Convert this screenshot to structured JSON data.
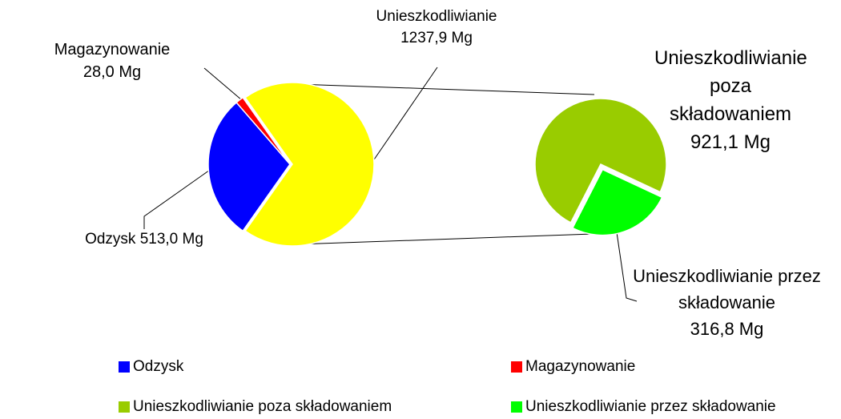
{
  "chart_data": [
    {
      "type": "pie",
      "categories": [
        "Odzysk",
        "Magazynowanie",
        "Unieszkodliwianie"
      ],
      "values": [
        513.0,
        28.0,
        1237.9
      ],
      "value_labels": [
        "513,0 Mg",
        "28,0 Mg",
        "1237,9 Mg"
      ],
      "colors": [
        "#0000ff",
        "#ff0000",
        "#ffff00"
      ],
      "legend": [
        true,
        true,
        false
      ]
    },
    {
      "type": "pie",
      "categories": [
        "Unieszkodliwianie poza składowaniem",
        "Unieszkodliwianie przez składowanie"
      ],
      "values": [
        921.1,
        316.8
      ],
      "value_labels": [
        "921,1 Mg",
        "316,8 Mg"
      ],
      "colors": [
        "#99cc00",
        "#00ff00"
      ],
      "legend": [
        true,
        true
      ]
    }
  ]
}
